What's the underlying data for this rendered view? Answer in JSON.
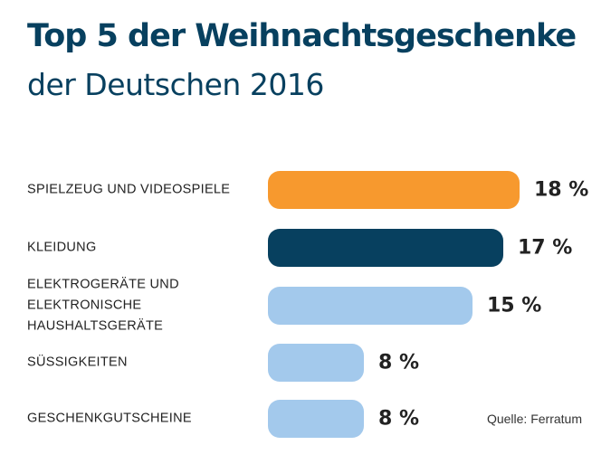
{
  "chart_data": {
    "type": "bar",
    "orientation": "horizontal",
    "title": "Top 5 der Weihnachtsgeschenke",
    "subtitle": "der Deutschen 2016",
    "categories": [
      "SPIELZEUG UND VIDEOSPIELE",
      "KLEIDUNG",
      "ELEKTROGERÄTE UND\nELEKTRONISCHE\nHAUSHALTSGERÄTE",
      "SÜSSIGKEITEN",
      "GESCHENKGUTSCHEINE"
    ],
    "values": [
      18,
      17,
      15,
      8,
      8
    ],
    "value_labels": [
      "18 %",
      "17 %",
      "15 %",
      "8 %",
      "8 %"
    ],
    "colors": [
      "#f7992e",
      "#07405f",
      "#a3c9ec",
      "#a3c9ec",
      "#a3c9ec"
    ],
    "grid": false,
    "source": "Quelle: Ferratum"
  }
}
